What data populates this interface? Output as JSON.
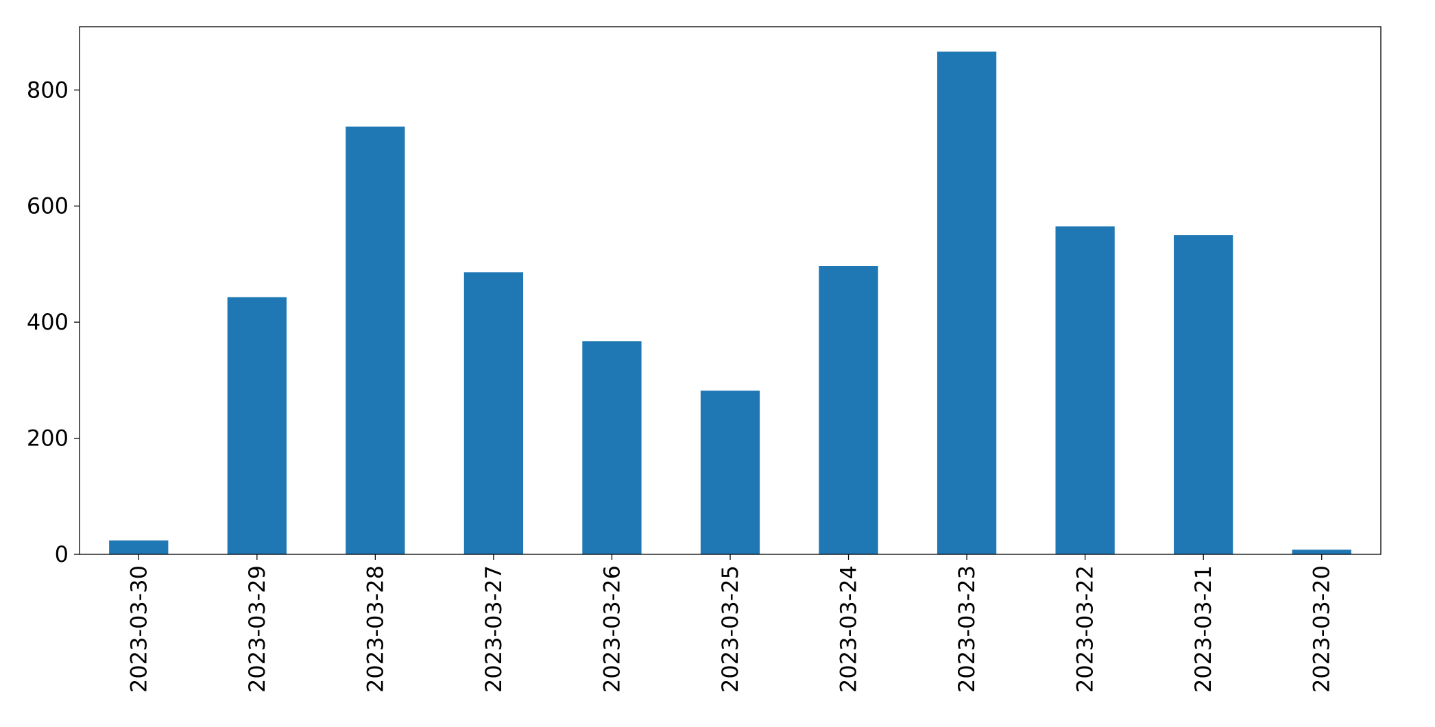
{
  "chart_data": {
    "type": "bar",
    "categories": [
      "2023-03-30",
      "2023-03-29",
      "2023-03-28",
      "2023-03-27",
      "2023-03-26",
      "2023-03-25",
      "2023-03-24",
      "2023-03-23",
      "2023-03-22",
      "2023-03-21",
      "2023-03-20"
    ],
    "values": [
      24,
      443,
      737,
      486,
      367,
      282,
      497,
      866,
      565,
      550,
      8
    ],
    "color": "#1f77b4",
    "ylim": [
      0,
      909
    ],
    "yticks": [
      0,
      200,
      400,
      600,
      800
    ],
    "grid": false
  }
}
